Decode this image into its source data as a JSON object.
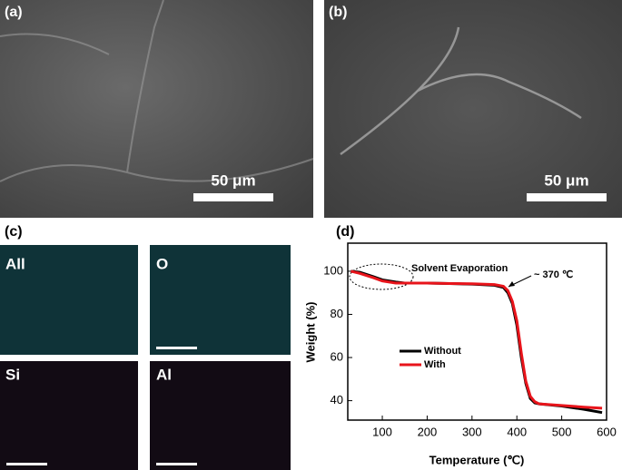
{
  "panels": {
    "a": {
      "label": "(a)",
      "scale_bar": "50 μm"
    },
    "b": {
      "label": "(b)",
      "scale_bar": "50 μm"
    },
    "c": {
      "label": "(c)",
      "maps": [
        "All",
        "O",
        "Si",
        "Al"
      ]
    },
    "d": {
      "label": "(d)"
    }
  },
  "chart_data": {
    "type": "line",
    "x_label": "Temperature (℃)",
    "y_label": "Weight (%)",
    "annotations": [
      "Solvent Evaporation",
      "~ 370 ℃"
    ],
    "x": [
      30,
      50,
      80,
      100,
      130,
      150,
      200,
      250,
      300,
      350,
      370,
      380,
      390,
      400,
      410,
      420,
      430,
      440,
      450,
      500,
      550,
      590
    ],
    "series": [
      {
        "name": "Without",
        "color": "#000000",
        "values": [
          100,
          99.5,
          97.5,
          96,
          95,
          94.5,
          94.5,
          94.3,
          94,
          93.5,
          92.5,
          90,
          85,
          75,
          60,
          48,
          41,
          39,
          38.5,
          37.5,
          36,
          34.5
        ]
      },
      {
        "name": "With",
        "color": "#e8141b",
        "values": [
          100,
          99,
          97,
          95.5,
          94.5,
          94.5,
          94.5,
          94.3,
          94.2,
          93.8,
          93,
          91,
          86,
          77,
          62,
          49,
          42,
          39.5,
          38.5,
          37.8,
          37,
          36.5
        ]
      }
    ],
    "xlim": [
      23,
      600
    ],
    "ylim": [
      31,
      113
    ],
    "xticks": [
      100,
      200,
      300,
      400,
      500,
      600
    ],
    "yticks": [
      40,
      60,
      80,
      100
    ],
    "grid": false
  }
}
